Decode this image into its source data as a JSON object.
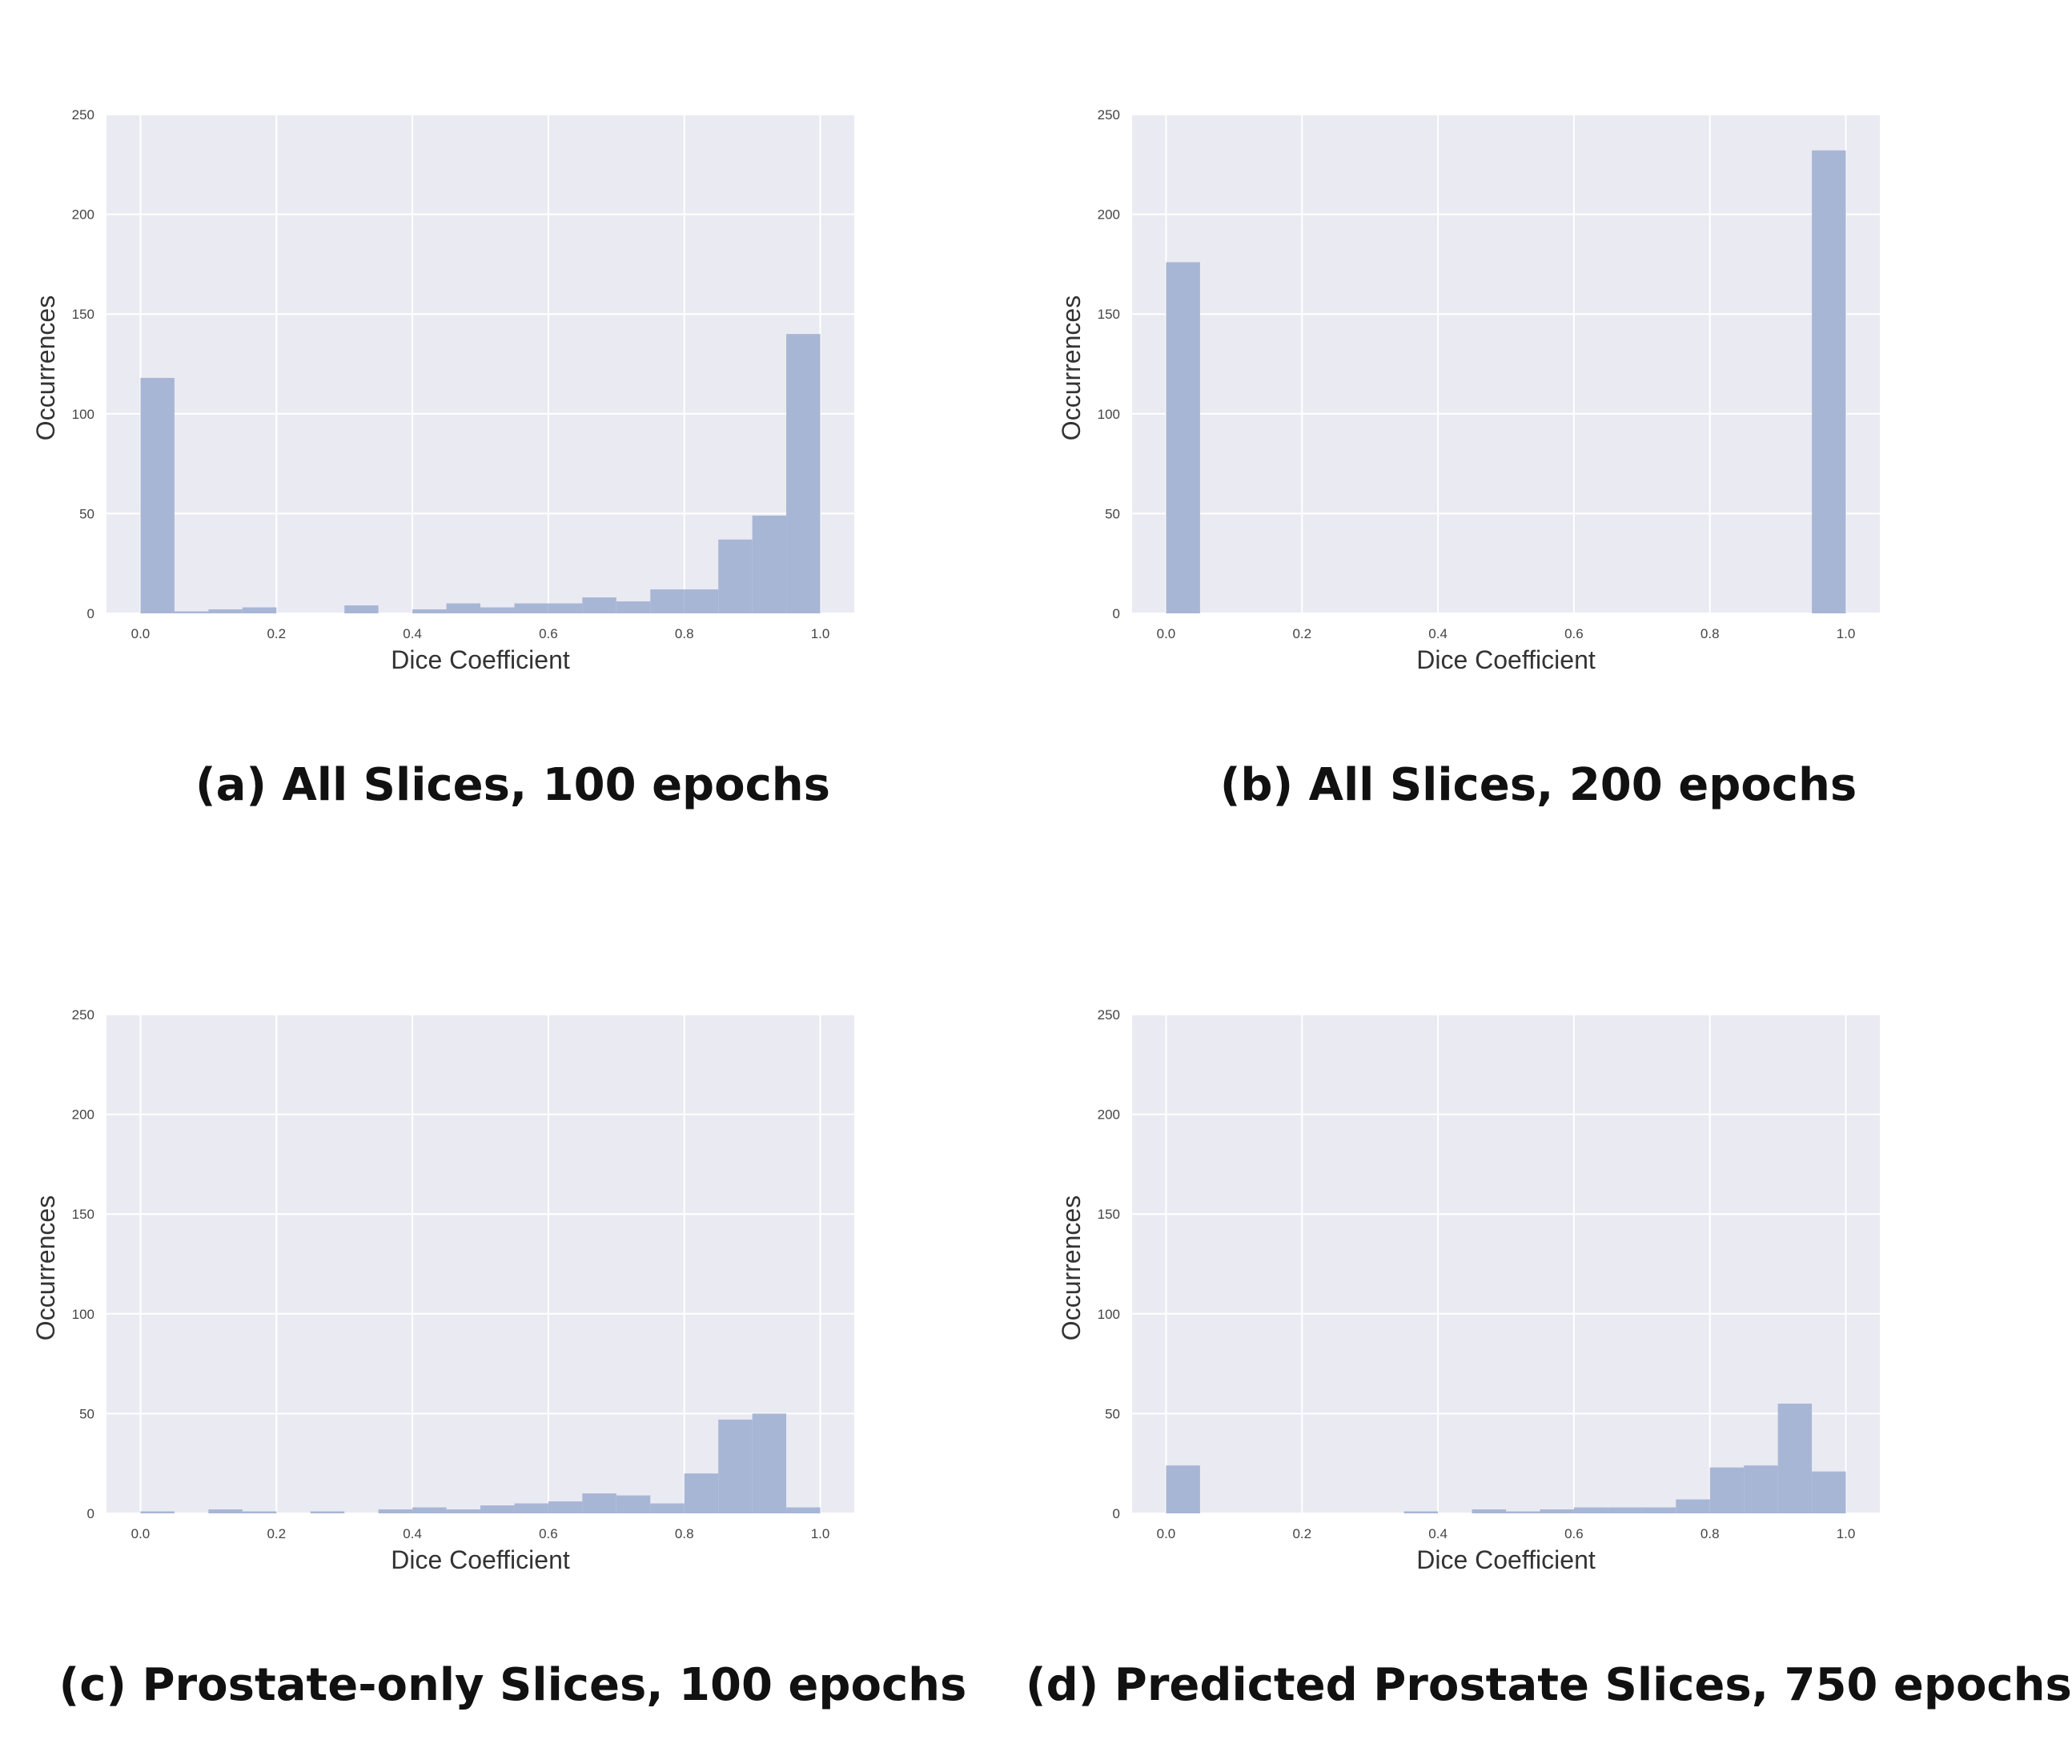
{
  "chart_data": [
    {
      "type": "bar",
      "subtitle": "(a) All Slices, 100 epochs",
      "xlabel": "Dice Coefficient",
      "ylabel": "Occurrences",
      "xlim": [
        -0.05,
        1.05
      ],
      "ylim": [
        0,
        250
      ],
      "xticks": [
        "0.0",
        "0.2",
        "0.4",
        "0.6",
        "0.8",
        "1.0"
      ],
      "yticks": [
        "0",
        "50",
        "100",
        "150",
        "200",
        "250"
      ],
      "bin_width": 0.05,
      "bin_starts": [
        0.0,
        0.05,
        0.1,
        0.15,
        0.2,
        0.25,
        0.3,
        0.35,
        0.4,
        0.45,
        0.5,
        0.55,
        0.6,
        0.65,
        0.7,
        0.75,
        0.8,
        0.85,
        0.9,
        0.95
      ],
      "values": [
        118,
        1,
        2,
        3,
        0,
        0,
        4,
        0,
        2,
        5,
        3,
        5,
        5,
        8,
        6,
        12,
        12,
        37,
        49,
        140
      ],
      "grid": true,
      "bar_color": "#a8b6d6",
      "background": "#eaeaf2"
    },
    {
      "type": "bar",
      "subtitle": "(b) All Slices, 200 epochs",
      "xlabel": "Dice Coefficient",
      "ylabel": "Occurrences",
      "xlim": [
        -0.05,
        1.05
      ],
      "ylim": [
        0,
        250
      ],
      "xticks": [
        "0.0",
        "0.2",
        "0.4",
        "0.6",
        "0.8",
        "1.0"
      ],
      "yticks": [
        "0",
        "50",
        "100",
        "150",
        "200",
        "250"
      ],
      "bin_width": 0.05,
      "bin_starts": [
        0.0,
        0.05,
        0.1,
        0.15,
        0.2,
        0.25,
        0.3,
        0.35,
        0.4,
        0.45,
        0.5,
        0.55,
        0.6,
        0.65,
        0.7,
        0.75,
        0.8,
        0.85,
        0.9,
        0.95
      ],
      "values": [
        176,
        0,
        0,
        0,
        0,
        0,
        0,
        0,
        0,
        0,
        0,
        0,
        0,
        0,
        0,
        0,
        0,
        0,
        0,
        232
      ],
      "grid": true,
      "bar_color": "#a8b6d6",
      "background": "#eaeaf2"
    },
    {
      "type": "bar",
      "subtitle": "(c) Prostate-only Slices, 100 epochs",
      "xlabel": "Dice Coefficient",
      "ylabel": "Occurrences",
      "xlim": [
        -0.05,
        1.05
      ],
      "ylim": [
        0,
        250
      ],
      "xticks": [
        "0.0",
        "0.2",
        "0.4",
        "0.6",
        "0.8",
        "1.0"
      ],
      "yticks": [
        "0",
        "50",
        "100",
        "150",
        "200",
        "250"
      ],
      "bin_width": 0.05,
      "bin_starts": [
        0.0,
        0.05,
        0.1,
        0.15,
        0.2,
        0.25,
        0.3,
        0.35,
        0.4,
        0.45,
        0.5,
        0.55,
        0.6,
        0.65,
        0.7,
        0.75,
        0.8,
        0.85,
        0.9,
        0.95
      ],
      "values": [
        1,
        0,
        2,
        1,
        0,
        1,
        0,
        2,
        3,
        2,
        4,
        5,
        6,
        10,
        9,
        5,
        20,
        47,
        50,
        3
      ],
      "grid": true,
      "bar_color": "#a8b6d6",
      "background": "#eaeaf2"
    },
    {
      "type": "bar",
      "subtitle": "(d) Predicted Prostate Slices, 750 epochs",
      "xlabel": "Dice Coefficient",
      "ylabel": "Occurrences",
      "xlim": [
        -0.05,
        1.05
      ],
      "ylim": [
        0,
        250
      ],
      "xticks": [
        "0.0",
        "0.2",
        "0.4",
        "0.6",
        "0.8",
        "1.0"
      ],
      "yticks": [
        "0",
        "50",
        "100",
        "150",
        "200",
        "250"
      ],
      "bin_width": 0.05,
      "bin_starts": [
        0.0,
        0.05,
        0.1,
        0.15,
        0.2,
        0.25,
        0.3,
        0.35,
        0.4,
        0.45,
        0.5,
        0.55,
        0.6,
        0.65,
        0.7,
        0.75,
        0.8,
        0.85,
        0.9,
        0.95
      ],
      "values": [
        24,
        0,
        0,
        0,
        0,
        0,
        0,
        1,
        0,
        2,
        1,
        2,
        3,
        3,
        3,
        7,
        23,
        24,
        55,
        21
      ],
      "grid": true,
      "bar_color": "#a8b6d6",
      "background": "#eaeaf2"
    }
  ]
}
